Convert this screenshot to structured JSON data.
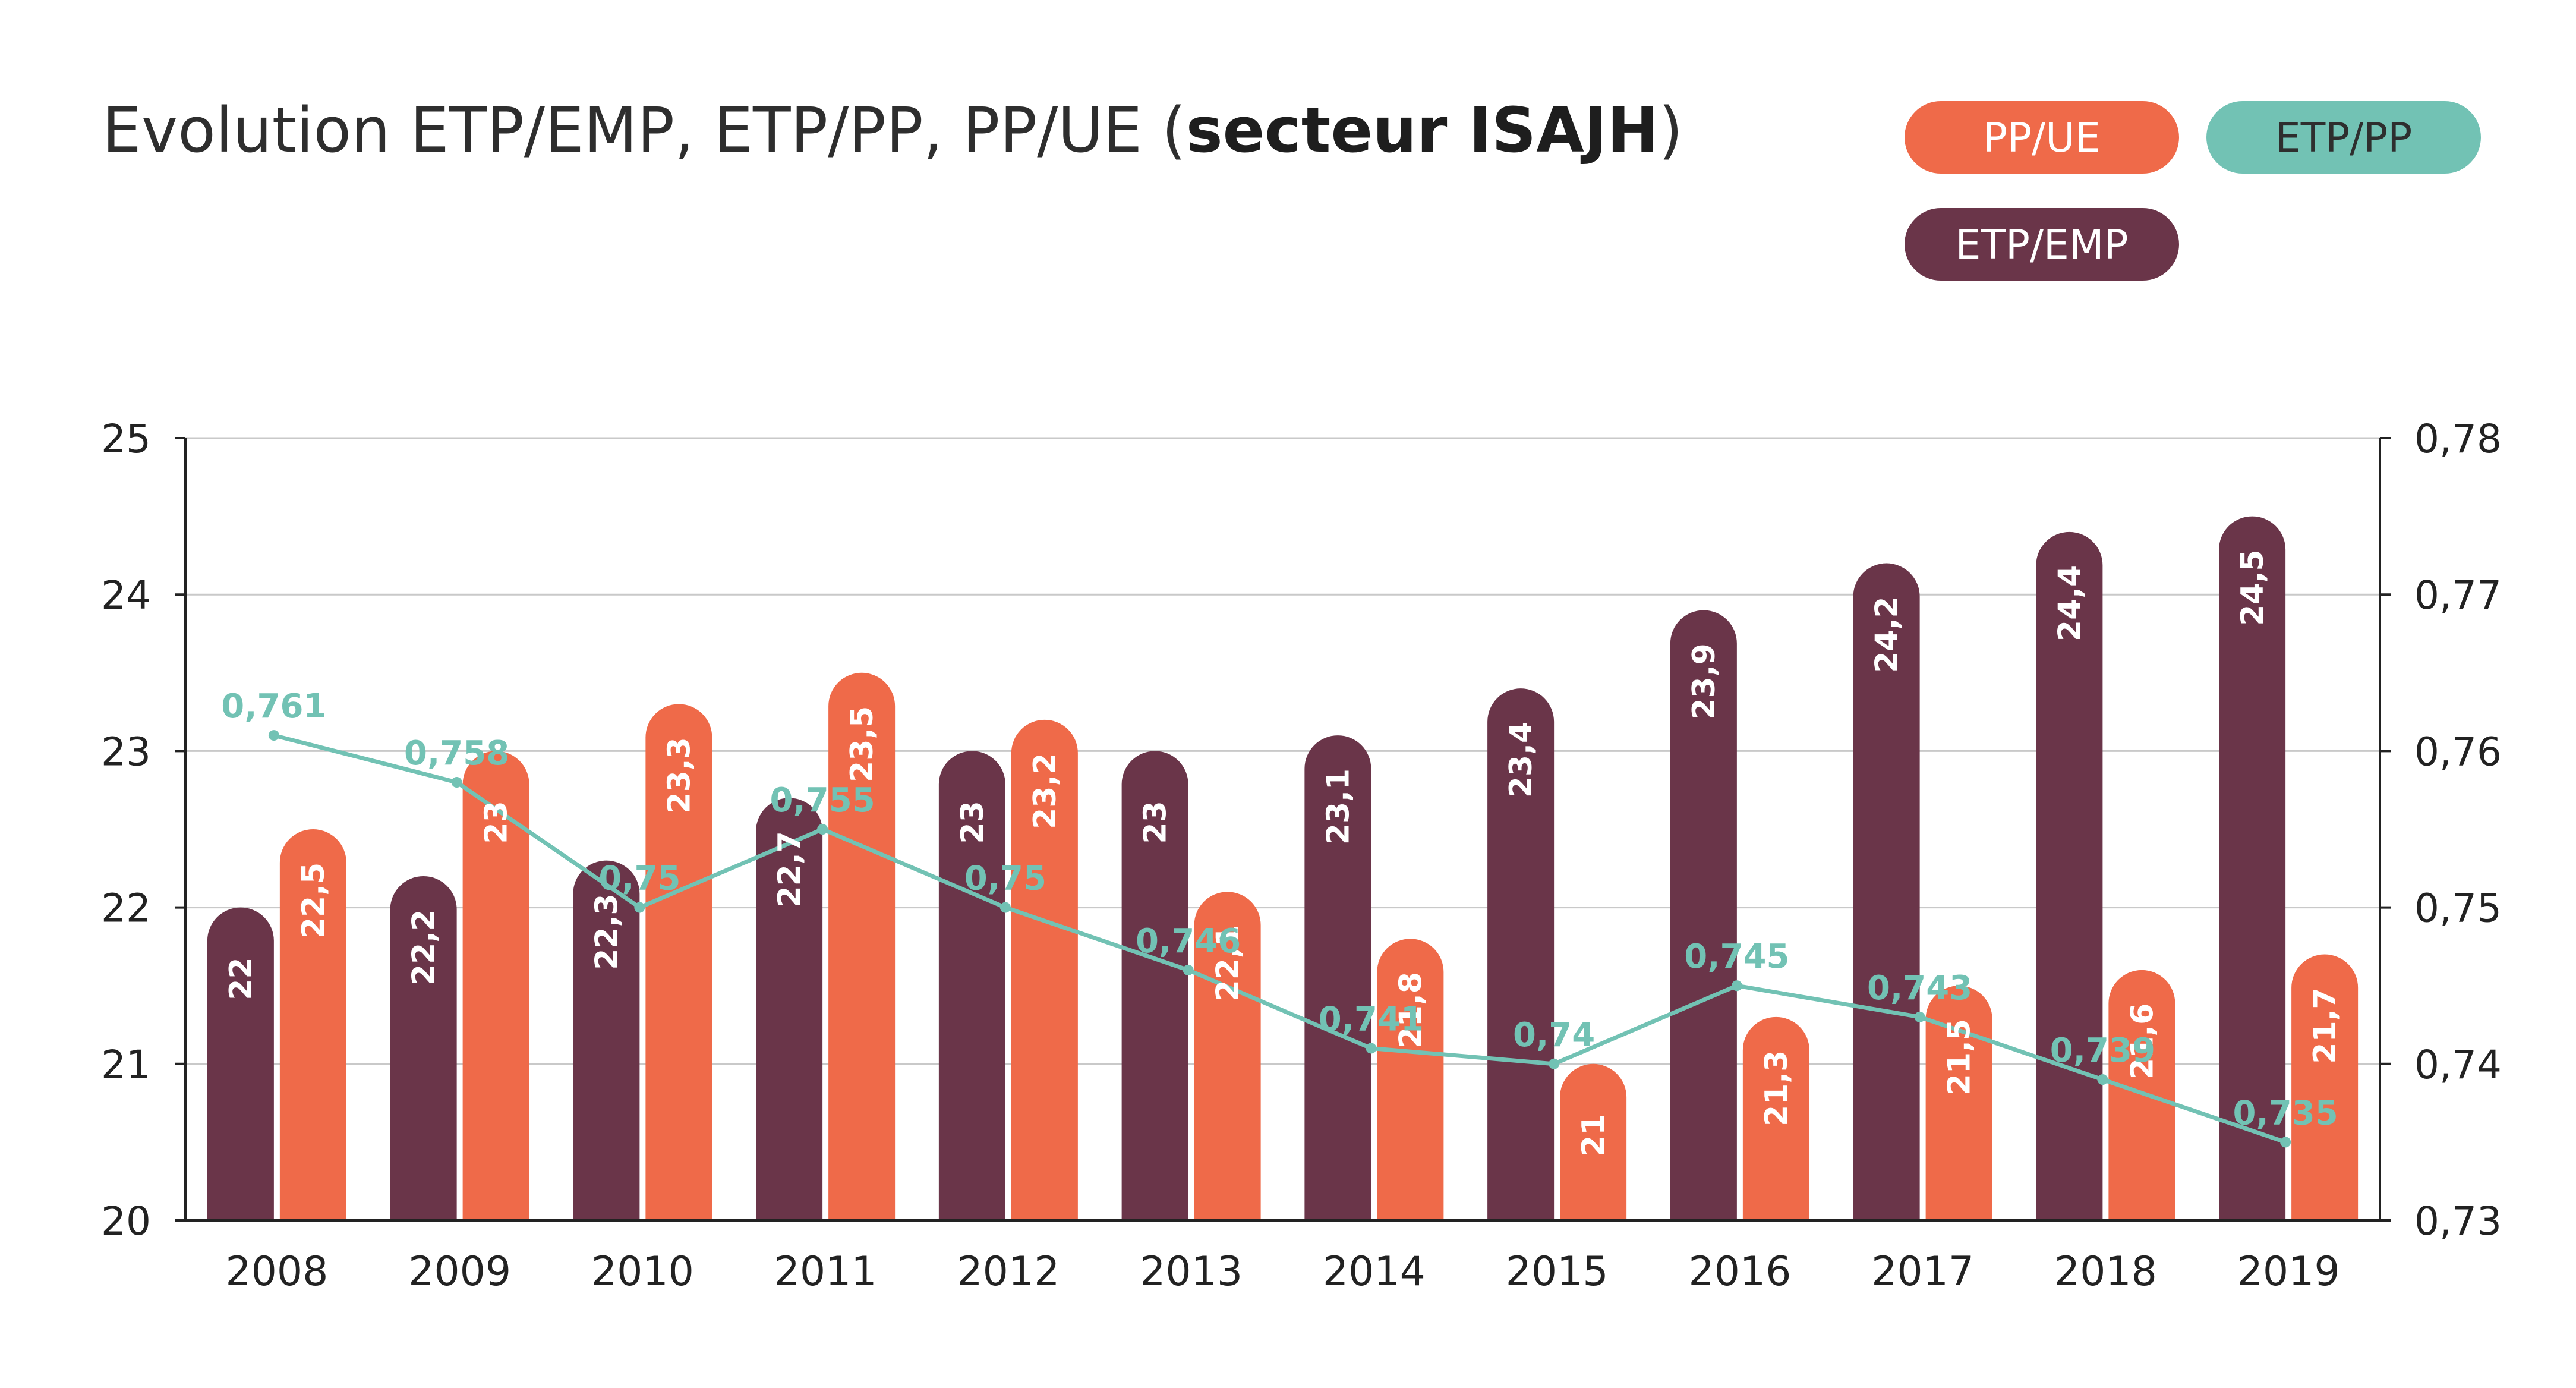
{
  "chart_data": {
    "type": "bar",
    "title": "Evolution ETP/EMP, ETP/PP, PP/UE (",
    "title_bold": "secteur ISAJH",
    "title_end": ")",
    "categories": [
      "2008",
      "2009",
      "2010",
      "2011",
      "2012",
      "2013",
      "2014",
      "2015",
      "2016",
      "2017",
      "2018",
      "2019"
    ],
    "series": [
      {
        "name": "ETP/EMP",
        "type": "bar",
        "axis": "left",
        "color": "#6a3549",
        "values": [
          22,
          22.2,
          22.3,
          22.7,
          23,
          23,
          23.1,
          23.4,
          23.9,
          24.2,
          24.4,
          24.5
        ],
        "labels": [
          "22",
          "22,2",
          "22,3",
          "22,7",
          "23",
          "23",
          "23,1",
          "23,4",
          "23,9",
          "24,2",
          "24,4",
          "24,5"
        ]
      },
      {
        "name": "PP/UE",
        "type": "bar",
        "axis": "left",
        "color": "#ef6a49",
        "values": [
          22.5,
          23,
          23.3,
          23.5,
          23.2,
          22.1,
          21.8,
          21,
          21.3,
          21.5,
          21.6,
          21.7
        ],
        "labels": [
          "22,5",
          "23",
          "23,3",
          "23,5",
          "23,2",
          "22,1",
          "21,8",
          "21",
          "21,3",
          "21,5",
          "21,6",
          "21,7"
        ]
      },
      {
        "name": "ETP/PP",
        "type": "line",
        "axis": "right",
        "color": "#72c2b4",
        "values": [
          0.761,
          0.758,
          0.75,
          0.755,
          0.75,
          0.746,
          0.741,
          0.74,
          0.745,
          0.743,
          0.739,
          0.735
        ],
        "labels": [
          "0,761",
          "0,758",
          "0,75",
          "0,755",
          "0,75",
          "0,746",
          "0,741",
          "0,74",
          "0,745",
          "0,743",
          "0,739",
          "0,735"
        ]
      }
    ],
    "ylim": [
      20,
      25
    ],
    "yticks": [
      "20",
      "21",
      "22",
      "23",
      "24",
      "25"
    ],
    "y2lim": [
      0.73,
      0.78
    ],
    "y2ticks": [
      "0,73",
      "0,74",
      "0,75",
      "0,76",
      "0,77",
      "0,78"
    ],
    "grid": true,
    "legend_position": "top-right"
  }
}
